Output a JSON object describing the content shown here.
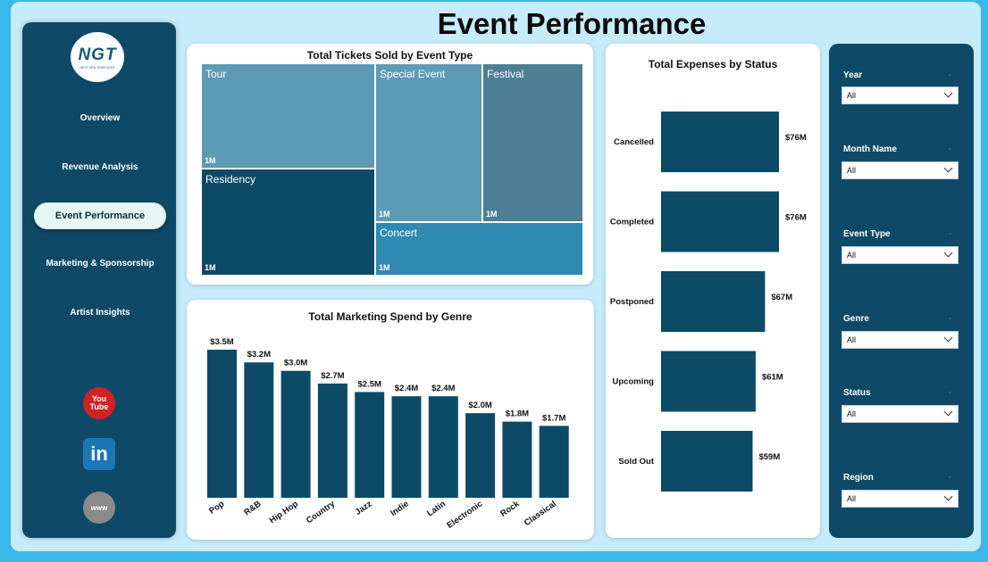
{
  "header": {
    "title": "Event Performance"
  },
  "logo": {
    "text": "NGT",
    "subtext": "NEXT GEN TEMPLATES"
  },
  "nav": {
    "items": [
      {
        "label": "Overview"
      },
      {
        "label": "Revenue Analysis"
      },
      {
        "label": "Event Performance",
        "active": true
      },
      {
        "label": "Marketing & Sponsorship"
      },
      {
        "label": "Artist Insights"
      }
    ]
  },
  "social": {
    "youtube": "You Tube",
    "linkedin": "in",
    "web": "www"
  },
  "tickets": {
    "title": "Total Tickets Sold by Event Type",
    "tiles": [
      {
        "label": "Tour",
        "value": "1M",
        "color": "#5d9ab5"
      },
      {
        "label": "Residency",
        "value": "1M",
        "color": "#0d4a68"
      },
      {
        "label": "Special Event",
        "value": "1M",
        "color": "#5d9ab5"
      },
      {
        "label": "Festival",
        "value": "1M",
        "color": "#4c7f94"
      },
      {
        "label": "Concert",
        "value": "1M",
        "color": "#2f89b0"
      }
    ]
  },
  "marketing": {
    "title": "Total Marketing Spend by Genre"
  },
  "expenses": {
    "title": "Total Expenses by Status"
  },
  "chart_data": [
    {
      "type": "bar",
      "title": "Total Marketing Spend by Genre",
      "categories": [
        "Pop",
        "R&B",
        "Hip Hop",
        "Country",
        "Jazz",
        "Indie",
        "Latin",
        "Electronic",
        "Rock",
        "Classical"
      ],
      "values": [
        3.5,
        3.2,
        3.0,
        2.7,
        2.5,
        2.4,
        2.4,
        2.0,
        1.8,
        1.7
      ],
      "labels": [
        "$3.5M",
        "$3.2M",
        "$3.0M",
        "$2.7M",
        "$2.5M",
        "$2.4M",
        "$2.4M",
        "$2.0M",
        "$1.8M",
        "$1.7M"
      ],
      "unit": "$M",
      "ylim": [
        0,
        3.5
      ],
      "color": "#0d4a68",
      "grid": false
    },
    {
      "type": "bar",
      "orientation": "horizontal",
      "title": "Total Expenses by Status",
      "categories": [
        "Cancelled",
        "Completed",
        "Postponed",
        "Upcoming",
        "Sold Out"
      ],
      "values": [
        76,
        76,
        67,
        61,
        59
      ],
      "labels": [
        "$76M",
        "$76M",
        "$67M",
        "$61M",
        "$59M"
      ],
      "unit": "$M",
      "xlim": [
        0,
        76
      ],
      "color": "#0d4a68",
      "grid": false
    }
  ],
  "slicers": [
    {
      "label": "Year",
      "value": "All"
    },
    {
      "label": "Month Name",
      "value": "All"
    },
    {
      "label": "Event Type",
      "value": "All"
    },
    {
      "label": "Genre",
      "value": "All"
    },
    {
      "label": "Status",
      "value": "All"
    },
    {
      "label": "Region",
      "value": "All"
    }
  ]
}
